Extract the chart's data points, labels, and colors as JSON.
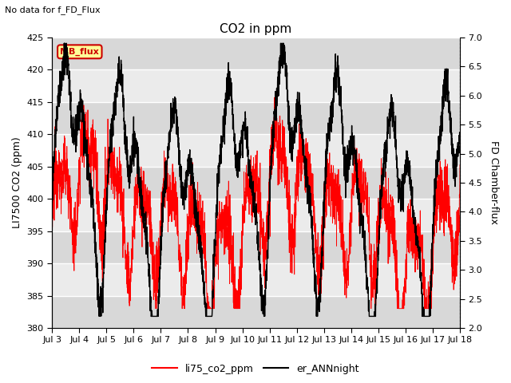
{
  "title": "CO2 in ppm",
  "subtitle": "No data for f_FD_Flux",
  "ylabel_left": "LI7500 CO2 (ppm)",
  "ylabel_right": "FD Chamber-flux",
  "ylim_left": [
    380,
    425
  ],
  "ylim_right": [
    2.0,
    7.0
  ],
  "yticks_left": [
    380,
    385,
    390,
    395,
    400,
    405,
    410,
    415,
    420,
    425
  ],
  "yticks_right": [
    2.0,
    2.5,
    3.0,
    3.5,
    4.0,
    4.5,
    5.0,
    5.5,
    6.0,
    6.5,
    7.0
  ],
  "xtick_labels": [
    "Jul 3",
    "Jul 4",
    "Jul 5",
    "Jul 6",
    "Jul 7",
    "Jul 8",
    "Jul 9",
    "Jul 10",
    "Jul 11",
    "Jul 12",
    "Jul 13",
    "Jul 14",
    "Jul 15",
    "Jul 16",
    "Jul 17",
    "Jul 18"
  ],
  "legend_labels": [
    "li75_co2_ppm",
    "er_ANNnight"
  ],
  "legend_colors": [
    "#ff0000",
    "#000000"
  ],
  "line1_color": "#ff0000",
  "line2_color": "#000000",
  "line1_lw": 0.6,
  "line2_lw": 1.0,
  "background_color": "#ebebeb",
  "stripe_color": "#d8d8d8",
  "annotation_box_color": "#ffff99",
  "annotation_box_edge": "#cc0000",
  "annotation_text": "MB_flux",
  "annotation_text_color": "#cc0000",
  "grid_color": "#ffffff",
  "n_points": 3000
}
